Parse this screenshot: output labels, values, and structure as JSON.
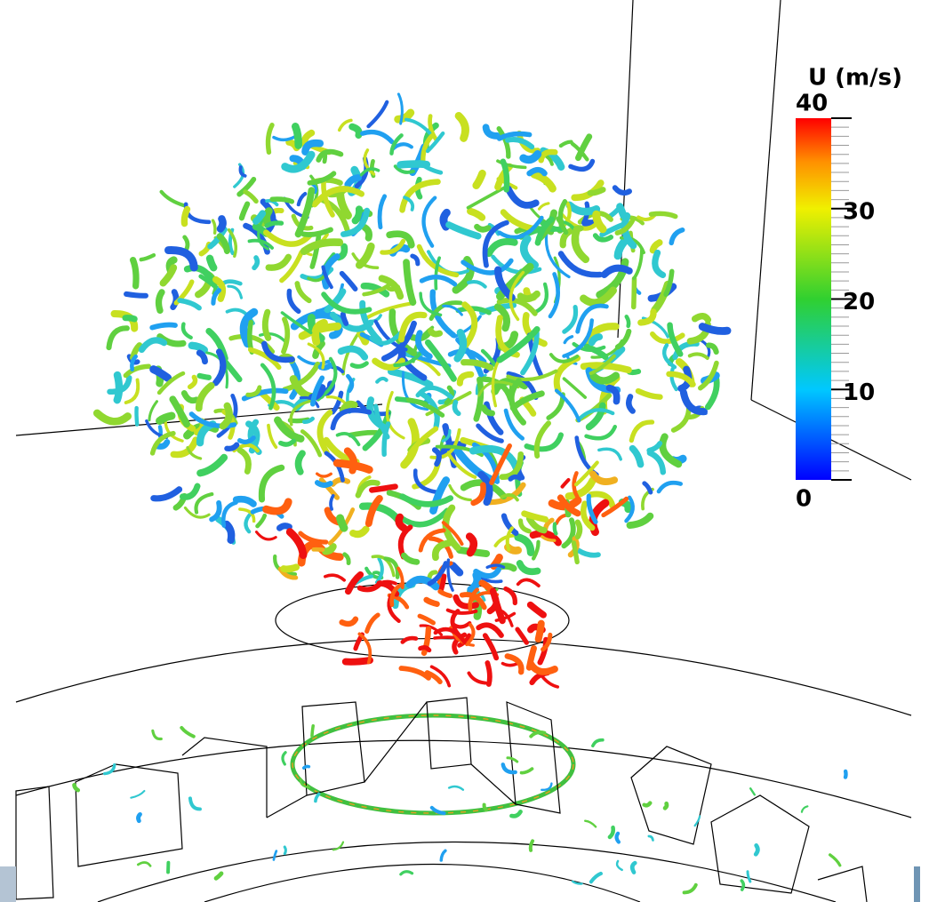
{
  "colorbar": {
    "title": "U (m/s)",
    "range": [
      0,
      40
    ],
    "ticks": [
      0,
      10,
      20,
      30,
      40
    ]
  }
}
